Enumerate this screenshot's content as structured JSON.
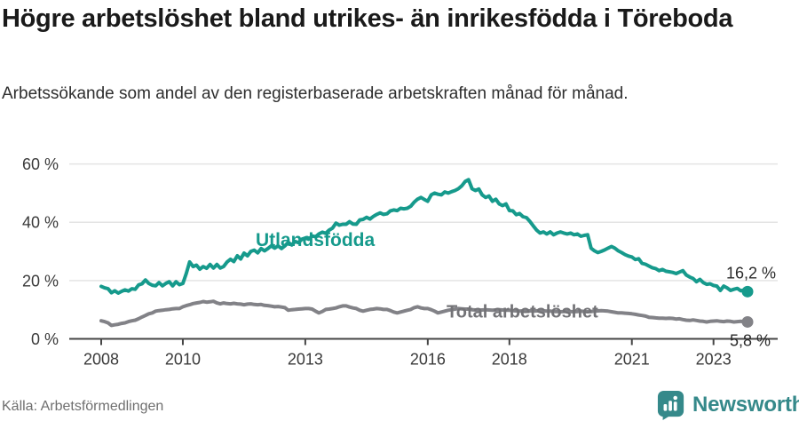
{
  "header": {
    "title": "Högre arbetslöshet bland utrikes- än inrikesfödda i Töreboda",
    "subtitle": "Arbetssökande som andel av den registerbaserade arbetskraften månad för månad."
  },
  "footer": {
    "source": "Källa: Arbetsförmedlingen",
    "brand": "Newsworthy"
  },
  "colors": {
    "series_foreign": "#169a8c",
    "series_total": "#828287",
    "label_total": "#737377",
    "axis": "#454545",
    "gridline": "#e4e4e4",
    "tick_label": "#3a3a3a",
    "end_label": "#2a2a2a",
    "brand_teal": "#35898a"
  },
  "chart_data": {
    "type": "line",
    "title": "Högre arbetslöshet bland utrikes- än inrikesfödda i Töreboda",
    "subtitle": "Arbetssökande som andel av den registerbaserade arbetskraften månad för månad.",
    "x_unit": "month",
    "start": "2008-01",
    "end": "2023-11",
    "x_ticks": [
      2008,
      2010,
      2013,
      2016,
      2018,
      2021,
      2023
    ],
    "y_ticks": [
      0,
      20,
      40,
      60
    ],
    "y_tick_suffix": " %",
    "ylim": [
      0,
      60
    ],
    "grid": "horizontal",
    "legend_position": "inline-labels",
    "series": [
      {
        "name": "Utlandsfödda",
        "end_label": "16,2 %",
        "end_value": 16.2,
        "values": [
          18.0,
          17.5,
          17.2,
          15.8,
          16.5,
          15.7,
          16.3,
          16.8,
          16.4,
          17.2,
          17.0,
          18.5,
          18.9,
          20.2,
          19.0,
          18.4,
          18.2,
          19.3,
          18.2,
          19.0,
          19.6,
          18.2,
          19.6,
          18.6,
          19.0,
          22.4,
          26.4,
          24.8,
          25.3,
          23.9,
          24.8,
          24.2,
          25.5,
          24.3,
          25.5,
          24.3,
          24.8,
          26.4,
          27.3,
          26.5,
          28.5,
          27.4,
          29.4,
          28.5,
          30.0,
          30.4,
          29.5,
          31.0,
          30.2,
          31.0,
          31.9,
          31.1,
          31.9,
          31.0,
          31.9,
          33.1,
          32.2,
          33.4,
          33.0,
          34.2,
          34.6,
          34.2,
          35.3,
          35.0,
          36.0,
          36.6,
          36.2,
          37.3,
          38.0,
          39.7,
          39.0,
          39.3,
          39.3,
          40.2,
          39.4,
          39.3,
          40.8,
          41.0,
          41.7,
          41.1,
          42.0,
          42.7,
          43.2,
          42.7,
          42.9,
          43.9,
          44.2,
          44.0,
          44.8,
          44.6,
          44.8,
          45.5,
          46.9,
          47.9,
          48.5,
          47.8,
          47.2,
          49.4,
          50.0,
          49.6,
          49.4,
          50.4,
          50.0,
          50.5,
          50.9,
          51.5,
          52.5,
          54.0,
          54.6,
          51.5,
          50.9,
          51.4,
          49.4,
          48.5,
          49.0,
          47.2,
          47.9,
          46.3,
          45.7,
          46.3,
          44.0,
          43.9,
          42.6,
          43.0,
          41.9,
          41.6,
          40.3,
          38.8,
          37.3,
          36.3,
          36.7,
          36.0,
          36.7,
          35.7,
          36.3,
          36.7,
          36.3,
          36.0,
          36.3,
          35.7,
          36.0,
          35.2,
          35.5,
          35.7,
          31.1,
          30.2,
          29.6,
          30.0,
          30.5,
          31.1,
          31.7,
          31.1,
          30.2,
          29.6,
          28.9,
          28.4,
          28.1,
          27.2,
          27.5,
          25.9,
          25.6,
          25.0,
          24.4,
          24.1,
          23.4,
          23.8,
          23.2,
          23.0,
          22.8,
          22.4,
          22.9,
          23.4,
          21.9,
          21.2,
          20.7,
          19.6,
          20.4,
          19.3,
          18.7,
          18.9,
          18.3,
          18.1,
          16.6,
          18.1,
          17.5,
          16.6,
          17.0,
          17.3,
          16.5,
          16.8,
          16.2
        ]
      },
      {
        "name": "Total arbetslöshet",
        "end_label": "5,8 %",
        "end_value": 5.8,
        "values": [
          6.2,
          5.9,
          5.5,
          4.6,
          4.8,
          5.0,
          5.3,
          5.5,
          5.9,
          6.2,
          6.4,
          6.9,
          7.5,
          8.0,
          8.6,
          8.9,
          9.5,
          9.7,
          9.8,
          10.0,
          10.1,
          10.3,
          10.4,
          10.4,
          11.0,
          11.4,
          11.7,
          12.1,
          12.3,
          12.5,
          12.8,
          12.6,
          12.7,
          12.9,
          12.3,
          12.0,
          12.3,
          12.1,
          12.0,
          12.2,
          12.0,
          11.9,
          11.7,
          11.9,
          12.0,
          11.8,
          11.7,
          11.8,
          11.5,
          11.4,
          11.2,
          11.0,
          11.1,
          10.9,
          10.7,
          9.8,
          10.0,
          10.1,
          10.2,
          10.3,
          10.4,
          10.4,
          10.2,
          9.5,
          8.9,
          9.4,
          10.1,
          10.2,
          10.4,
          10.6,
          11.0,
          11.3,
          11.3,
          10.9,
          10.6,
          10.4,
          9.8,
          9.5,
          9.8,
          10.1,
          10.2,
          10.4,
          10.3,
          10.1,
          10.1,
          9.7,
          9.2,
          8.9,
          9.2,
          9.5,
          9.8,
          10.1,
          10.7,
          11.0,
          10.6,
          10.4,
          10.4,
          10.0,
          9.5,
          8.9,
          9.2,
          9.5,
          9.8,
          10.0,
          10.2,
          10.4,
          10.3,
          10.2,
          10.2,
          10.0,
          9.9,
          9.8,
          9.9,
          10.0,
          9.9,
          9.8,
          9.9,
          10.0,
          9.9,
          9.8,
          9.8,
          9.7,
          9.6,
          9.5,
          9.6,
          9.7,
          9.6,
          9.5,
          9.6,
          9.7,
          9.6,
          9.5,
          9.5,
          9.4,
          9.4,
          9.3,
          9.4,
          9.5,
          9.4,
          9.3,
          9.4,
          9.5,
          9.4,
          9.3,
          9.4,
          9.5,
          9.6,
          9.7,
          9.6,
          9.5,
          9.3,
          9.1,
          8.9,
          8.9,
          8.8,
          8.7,
          8.6,
          8.4,
          8.2,
          8.0,
          7.8,
          7.4,
          7.3,
          7.2,
          7.1,
          7.1,
          7.0,
          7.1,
          7.0,
          6.8,
          6.9,
          6.6,
          6.4,
          6.3,
          6.5,
          6.3,
          6.1,
          6.0,
          5.8,
          6.0,
          6.1,
          6.2,
          6.0,
          5.9,
          6.1,
          6.0,
          5.8,
          5.9,
          6.0,
          5.9,
          5.8
        ]
      }
    ]
  }
}
